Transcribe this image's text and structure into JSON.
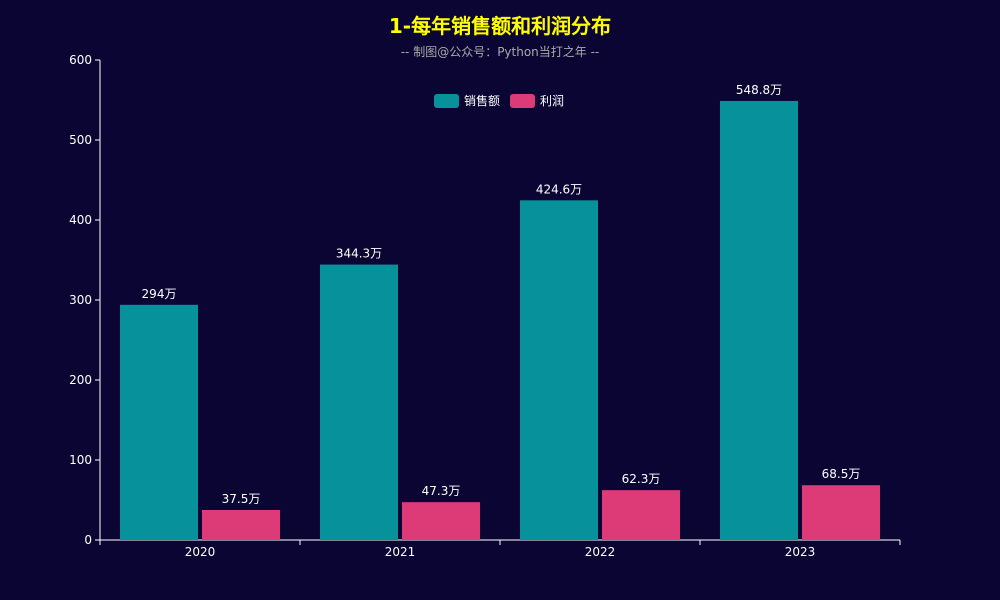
{
  "chart_data": {
    "type": "bar",
    "title": "1-每年销售额和利润分布",
    "subtitle": "-- 制图@公众号：Python当打之年 --",
    "categories": [
      "2020",
      "2021",
      "2022",
      "2023"
    ],
    "series": [
      {
        "name": "销售额",
        "color": "#07919a",
        "values": [
          294,
          344.3,
          424.6,
          548.8
        ],
        "labels": [
          "294万",
          "344.3万",
          "424.6万",
          "548.8万"
        ]
      },
      {
        "name": "利润",
        "color": "#dd3a78",
        "values": [
          37.5,
          47.3,
          62.3,
          68.5
        ],
        "labels": [
          "37.5万",
          "47.3万",
          "62.3万",
          "68.5万"
        ]
      }
    ],
    "ylim": [
      0,
      600
    ],
    "yticks": [
      "0",
      "100",
      "200",
      "300",
      "400",
      "500",
      "600"
    ],
    "grid": false,
    "legend_position": "top-center",
    "title_color": "#ffff00",
    "background_color": "#0b0533"
  }
}
